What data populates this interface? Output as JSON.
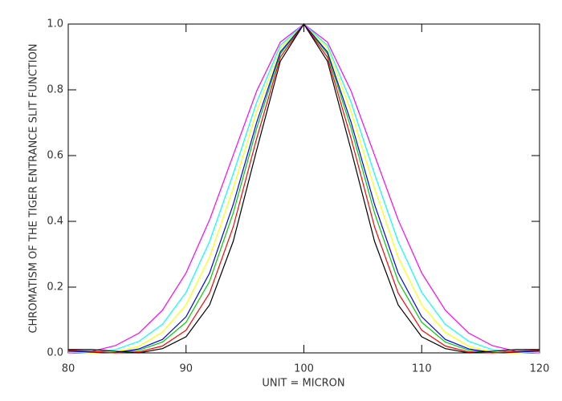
{
  "chart_data": {
    "type": "line",
    "xlabel": "UNIT = MICRON",
    "ylabel": "CHROMATISM OF THE TIGER ENTRANCE SLIT FUNCTION",
    "x": [
      80,
      82,
      84,
      86,
      88,
      90,
      92,
      94,
      96,
      98,
      100,
      102,
      104,
      106,
      108,
      110,
      112,
      114,
      116,
      118,
      120
    ],
    "xlim": [
      80,
      120
    ],
    "xticks": [
      80,
      90,
      100,
      110,
      120
    ],
    "ylim": [
      0,
      1
    ],
    "yticks": [
      {
        "value": 0,
        "label": "0.0"
      },
      0.2,
      0.4,
      0.6,
      0.8,
      {
        "value": 1,
        "label": "1.0"
      }
    ],
    "series": [
      {
        "color": "#ff00ff",
        "values": [
          0.0,
          0.005,
          0.022,
          0.06,
          0.13,
          0.243,
          0.405,
          0.601,
          0.797,
          0.945,
          1.0,
          0.945,
          0.797,
          0.601,
          0.405,
          0.243,
          0.13,
          0.06,
          0.022,
          0.005,
          0.0
        ]
      },
      {
        "color": "#00ffff",
        "values": [
          0.002,
          0.0,
          0.01,
          0.035,
          0.087,
          0.184,
          0.339,
          0.544,
          0.763,
          0.935,
          1.0,
          0.935,
          0.763,
          0.544,
          0.339,
          0.184,
          0.087,
          0.035,
          0.01,
          0.0,
          0.002
        ]
      },
      {
        "color": "#ffff00",
        "values": [
          0.003,
          0.0,
          0.003,
          0.02,
          0.063,
          0.146,
          0.291,
          0.5,
          0.735,
          0.926,
          1.0,
          0.926,
          0.735,
          0.5,
          0.291,
          0.146,
          0.063,
          0.02,
          0.003,
          0.0,
          0.003
        ]
      },
      {
        "color": "#00cc00",
        "values": [
          0.006,
          0.003,
          0.0,
          0.008,
          0.033,
          0.093,
          0.218,
          0.425,
          0.684,
          0.909,
          1.0,
          0.909,
          0.684,
          0.425,
          0.218,
          0.093,
          0.033,
          0.008,
          0.0,
          0.003,
          0.006
        ]
      },
      {
        "color": "#0000ff",
        "values": [
          0.005,
          0.002,
          0.001,
          0.012,
          0.041,
          0.11,
          0.243,
          0.451,
          0.702,
          0.915,
          1.0,
          0.915,
          0.702,
          0.451,
          0.243,
          0.11,
          0.041,
          0.012,
          0.001,
          0.002,
          0.005
        ]
      },
      {
        "color": "#ff0000",
        "values": [
          0.008,
          0.005,
          0.0,
          0.003,
          0.021,
          0.069,
          0.182,
          0.383,
          0.653,
          0.899,
          1.0,
          0.899,
          0.653,
          0.383,
          0.182,
          0.069,
          0.021,
          0.003,
          0.0,
          0.005,
          0.008
        ]
      },
      {
        "color": "#000000",
        "values": [
          0.01,
          0.01,
          0.005,
          0.0,
          0.013,
          0.049,
          0.146,
          0.339,
          0.618,
          0.887,
          1.0,
          0.887,
          0.618,
          0.339,
          0.146,
          0.049,
          0.013,
          0.0,
          0.005,
          0.01,
          0.01
        ]
      }
    ]
  }
}
